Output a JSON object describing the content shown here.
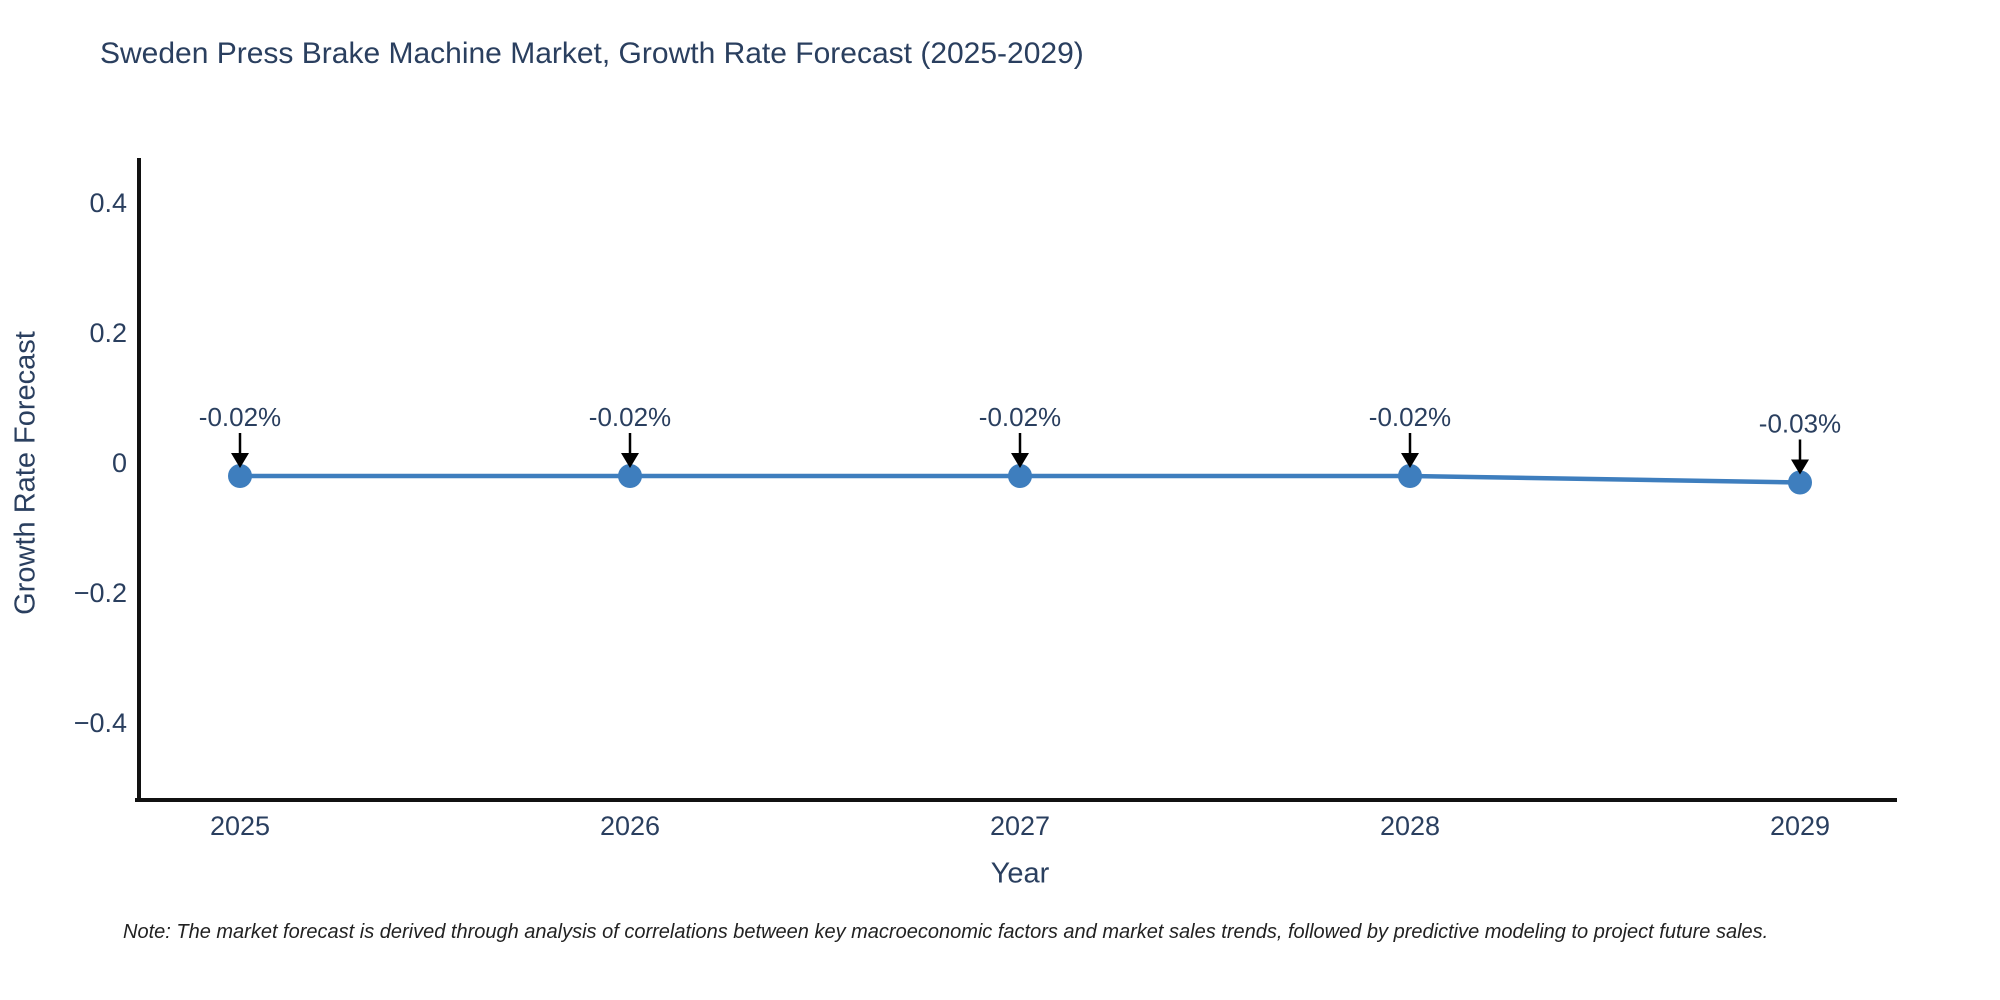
{
  "title": "Sweden Press Brake Machine Market, Growth Rate Forecast (2025-2029)",
  "note": "Note: The market forecast is derived through analysis of correlations between key macroeconomic factors and market sales trends, followed by predictive modeling to project future sales.",
  "colors": {
    "line_blue": "#3e7ebe",
    "text_slate": "#2a3f5f",
    "axis_black": "#111111",
    "arrow_black": "#000000",
    "note_dark": "#222222"
  },
  "chart_data": {
    "type": "line",
    "title": "Sweden Press Brake Machine Market, Growth Rate Forecast (2025-2029)",
    "categories": [
      "2025",
      "2026",
      "2027",
      "2028",
      "2029"
    ],
    "series": [
      {
        "name": "Growth Rate Forecast",
        "values": [
          -0.02,
          -0.02,
          -0.02,
          -0.02,
          -0.03
        ]
      }
    ],
    "annotations": [
      "-0.02%",
      "-0.02%",
      "-0.02%",
      "-0.02%",
      "-0.03%"
    ],
    "xlabel": "Year",
    "ylabel": "Growth Rate Forecast",
    "ylim": [
      -0.52,
      0.47
    ],
    "yticks": [
      0.4,
      0.2,
      0,
      -0.2,
      -0.4
    ],
    "grid": false,
    "legend": "none",
    "marker": "circle",
    "line_color": "#3e7ebe"
  }
}
